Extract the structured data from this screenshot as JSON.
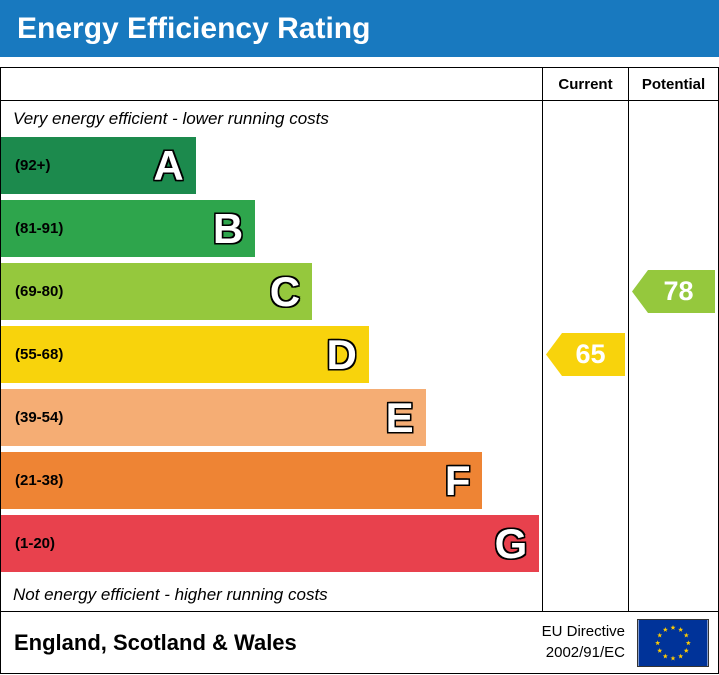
{
  "header": {
    "title": "Energy Efficiency Rating",
    "bg": "#1879bf"
  },
  "table": {
    "current_label": "Current",
    "potential_label": "Potential",
    "top_note": "Very energy efficient - lower running costs",
    "bottom_note": "Not energy efficient - higher running costs"
  },
  "bands": [
    {
      "letter": "A",
      "range": "(92+)",
      "color": "#1c8a4d",
      "width_pct": 36
    },
    {
      "letter": "B",
      "range": "(81-91)",
      "color": "#2ea54c",
      "width_pct": 47
    },
    {
      "letter": "C",
      "range": "(69-80)",
      "color": "#95c83d",
      "width_pct": 57.5
    },
    {
      "letter": "D",
      "range": "(55-68)",
      "color": "#f8d30c",
      "width_pct": 68
    },
    {
      "letter": "E",
      "range": "(39-54)",
      "color": "#f5ad74",
      "width_pct": 78.5
    },
    {
      "letter": "F",
      "range": "(21-38)",
      "color": "#ee8434",
      "width_pct": 89
    },
    {
      "letter": "G",
      "range": "(1-20)",
      "color": "#e8414d",
      "width_pct": 99.5
    }
  ],
  "current": {
    "value": "65",
    "color": "#f8d30c",
    "band_index": 3
  },
  "potential": {
    "value": "78",
    "color": "#95c83d",
    "band_index": 2
  },
  "footer": {
    "region": "England, Scotland & Wales",
    "directive_line1": "EU Directive",
    "directive_line2": "2002/91/EC"
  },
  "flag": {
    "bg": "#003399",
    "star_color": "#ffcc00"
  },
  "chart_data": {
    "type": "bar",
    "title": "Energy Efficiency Rating",
    "categories": [
      "A (92+)",
      "B (81-91)",
      "C (69-80)",
      "D (55-68)",
      "E (39-54)",
      "F (21-38)",
      "G (1-20)"
    ],
    "values": [
      36,
      47,
      57.5,
      68,
      78.5,
      89,
      99.5
    ],
    "markers": {
      "current": 65,
      "current_band": "D",
      "potential": 78,
      "potential_band": "C"
    },
    "top_annotation": "Very energy efficient - lower running costs",
    "bottom_annotation": "Not energy efficient - higher running costs",
    "region": "England, Scotland & Wales",
    "legend_position": "none",
    "grid": false
  }
}
